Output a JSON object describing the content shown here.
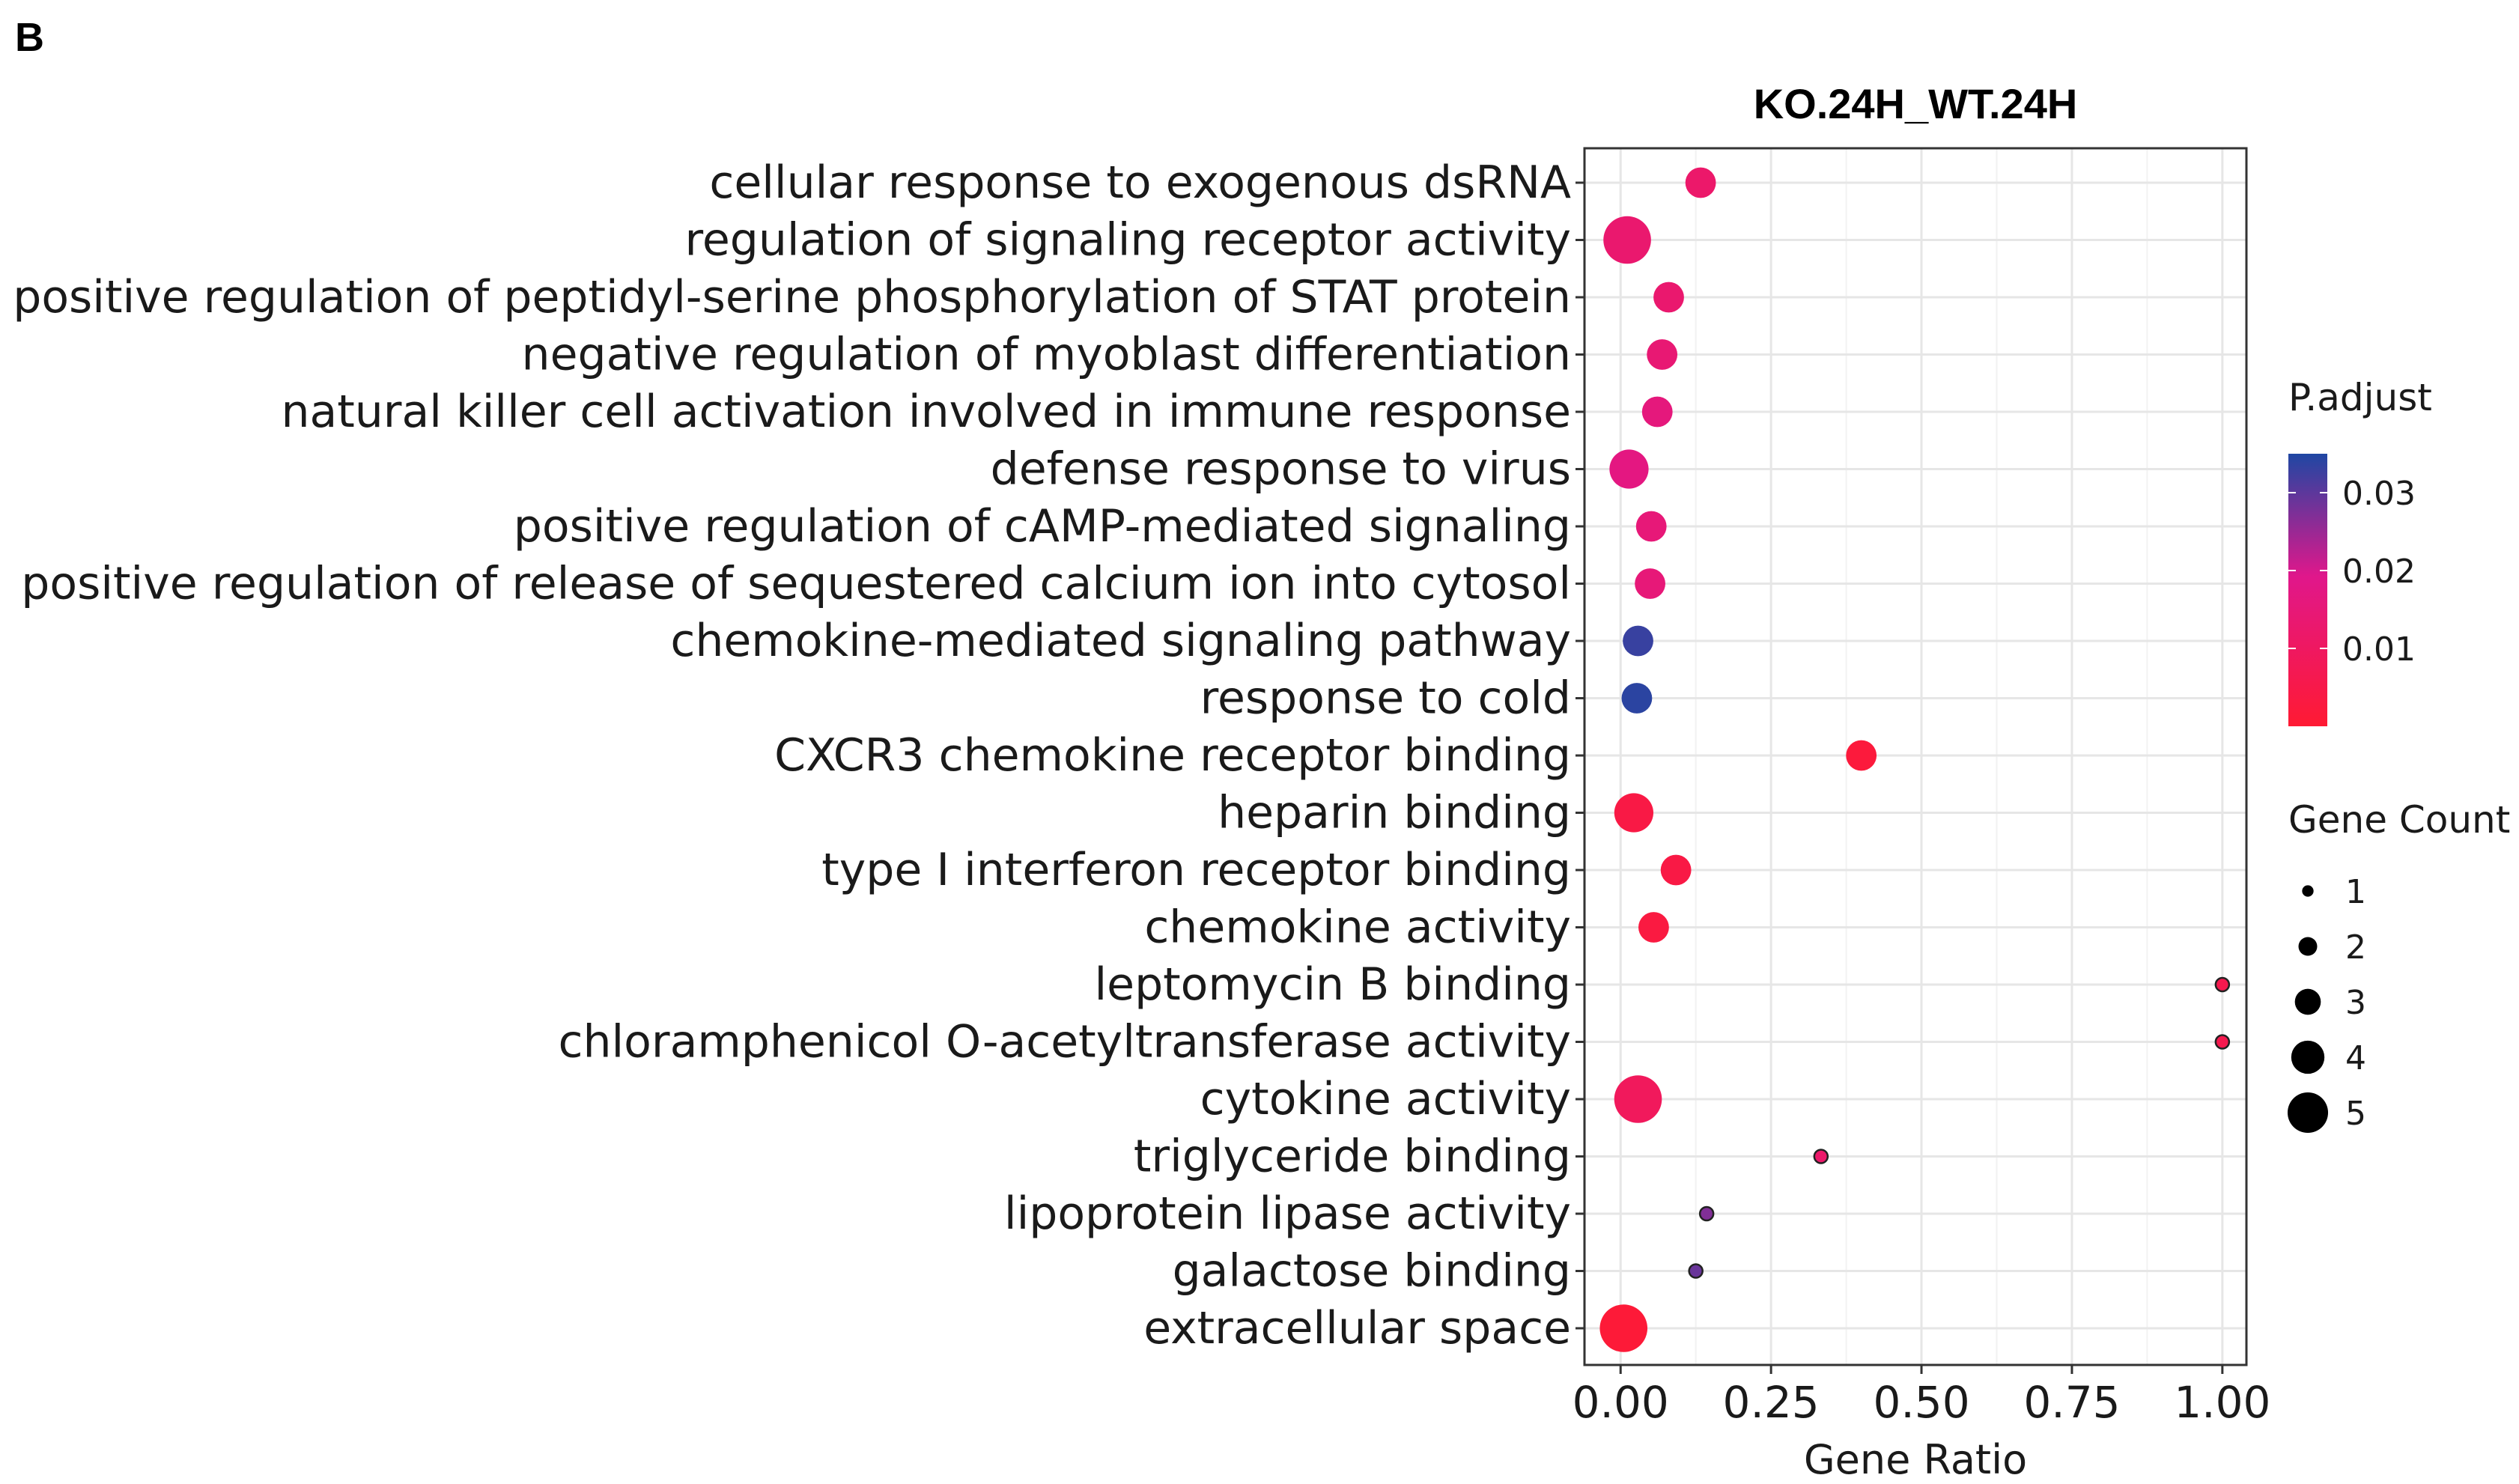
{
  "panel_label": "B",
  "chart_data": {
    "type": "scatter",
    "title": "KO.24H_WT.24H",
    "xlabel": "Gene Ratio",
    "ylabel": "",
    "xlim": [
      -0.06,
      1.04
    ],
    "x_ticks": [
      "0.00",
      "0.25",
      "0.50",
      "0.75",
      "1.00"
    ],
    "x_tick_values": [
      0,
      0.25,
      0.5,
      0.75,
      1.0
    ],
    "grid": true,
    "categories": [
      "cellular response to exogenous dsRNA",
      "regulation of signaling receptor activity",
      "positive regulation of peptidyl-serine phosphorylation of STAT protein",
      "negative regulation of myoblast differentiation",
      "natural killer cell activation involved in immune response",
      "defense response to virus",
      "positive regulation of cAMP-mediated signaling",
      "positive regulation of release of sequestered calcium ion into cytosol",
      "chemokine-mediated signaling pathway",
      "response to cold",
      "CXCR3 chemokine receptor binding",
      "heparin binding",
      "type I interferon receptor binding",
      "chemokine activity",
      "leptomycin B binding",
      "chloramphenicol O-acetyltransferase activity",
      "cytokine activity",
      "triglyceride binding",
      "lipoprotein lipase activity",
      "galactose binding",
      "extracellular space"
    ],
    "points": [
      {
        "gene_ratio": 0.133,
        "count": 3,
        "p_adjust": 0.012
      },
      {
        "gene_ratio": 0.011,
        "count": 5,
        "p_adjust": 0.013
      },
      {
        "gene_ratio": 0.08,
        "count": 3,
        "p_adjust": 0.013
      },
      {
        "gene_ratio": 0.069,
        "count": 3,
        "p_adjust": 0.014
      },
      {
        "gene_ratio": 0.061,
        "count": 3,
        "p_adjust": 0.016
      },
      {
        "gene_ratio": 0.014,
        "count": 4,
        "p_adjust": 0.017
      },
      {
        "gene_ratio": 0.051,
        "count": 3,
        "p_adjust": 0.015
      },
      {
        "gene_ratio": 0.049,
        "count": 3,
        "p_adjust": 0.015
      },
      {
        "gene_ratio": 0.029,
        "count": 3,
        "p_adjust": 0.033
      },
      {
        "gene_ratio": 0.027,
        "count": 3,
        "p_adjust": 0.034
      },
      {
        "gene_ratio": 0.4,
        "count": 3,
        "p_adjust": 0.002
      },
      {
        "gene_ratio": 0.022,
        "count": 4,
        "p_adjust": 0.004
      },
      {
        "gene_ratio": 0.092,
        "count": 3,
        "p_adjust": 0.004
      },
      {
        "gene_ratio": 0.055,
        "count": 3,
        "p_adjust": 0.003
      },
      {
        "gene_ratio": 1.0,
        "count": 1,
        "p_adjust": 0.006
      },
      {
        "gene_ratio": 1.0,
        "count": 1,
        "p_adjust": 0.006
      },
      {
        "gene_ratio": 0.029,
        "count": 5,
        "p_adjust": 0.009
      },
      {
        "gene_ratio": 0.333,
        "count": 1,
        "p_adjust": 0.012
      },
      {
        "gene_ratio": 0.143,
        "count": 1,
        "p_adjust": 0.027
      },
      {
        "gene_ratio": 0.125,
        "count": 1,
        "p_adjust": 0.029
      },
      {
        "gene_ratio": 0.005,
        "count": 5,
        "p_adjust": 0.001
      }
    ],
    "color_legend": {
      "title": "P.adjust",
      "range": [
        0.0,
        0.035
      ],
      "ticks": [
        "0.03",
        "0.02",
        "0.01"
      ],
      "tick_values": [
        0.03,
        0.02,
        0.01
      ],
      "low_color": "#ff1a33",
      "mid_color": "#e0178b",
      "high_color": "#1f47a3"
    },
    "size_legend": {
      "title": "Gene Count",
      "labels": [
        "1",
        "2",
        "3",
        "4",
        "5"
      ],
      "values": [
        1,
        2,
        3,
        4,
        5
      ]
    }
  }
}
